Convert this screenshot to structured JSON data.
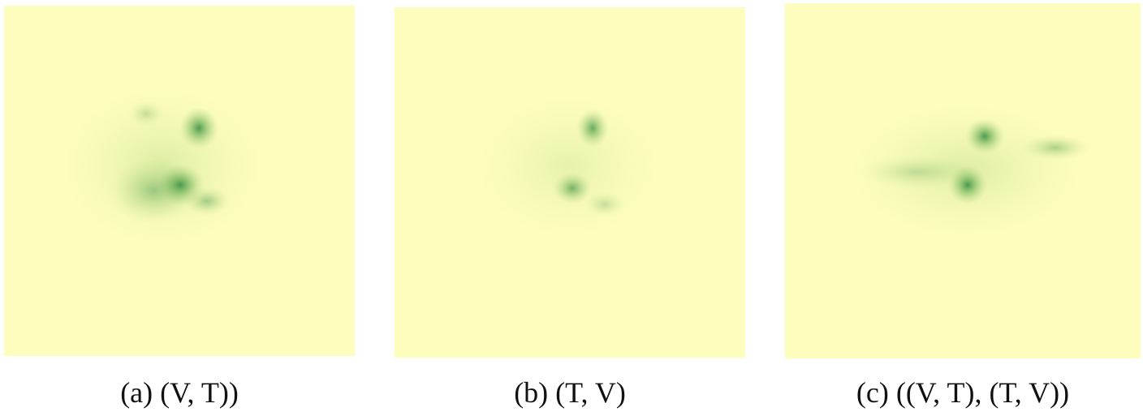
{
  "figure": {
    "panels": [
      {
        "caption": "(a) (V, T))"
      },
      {
        "caption": "(b) (T, V)"
      },
      {
        "caption": "(c) ((V, T), (T, V))"
      }
    ]
  }
}
